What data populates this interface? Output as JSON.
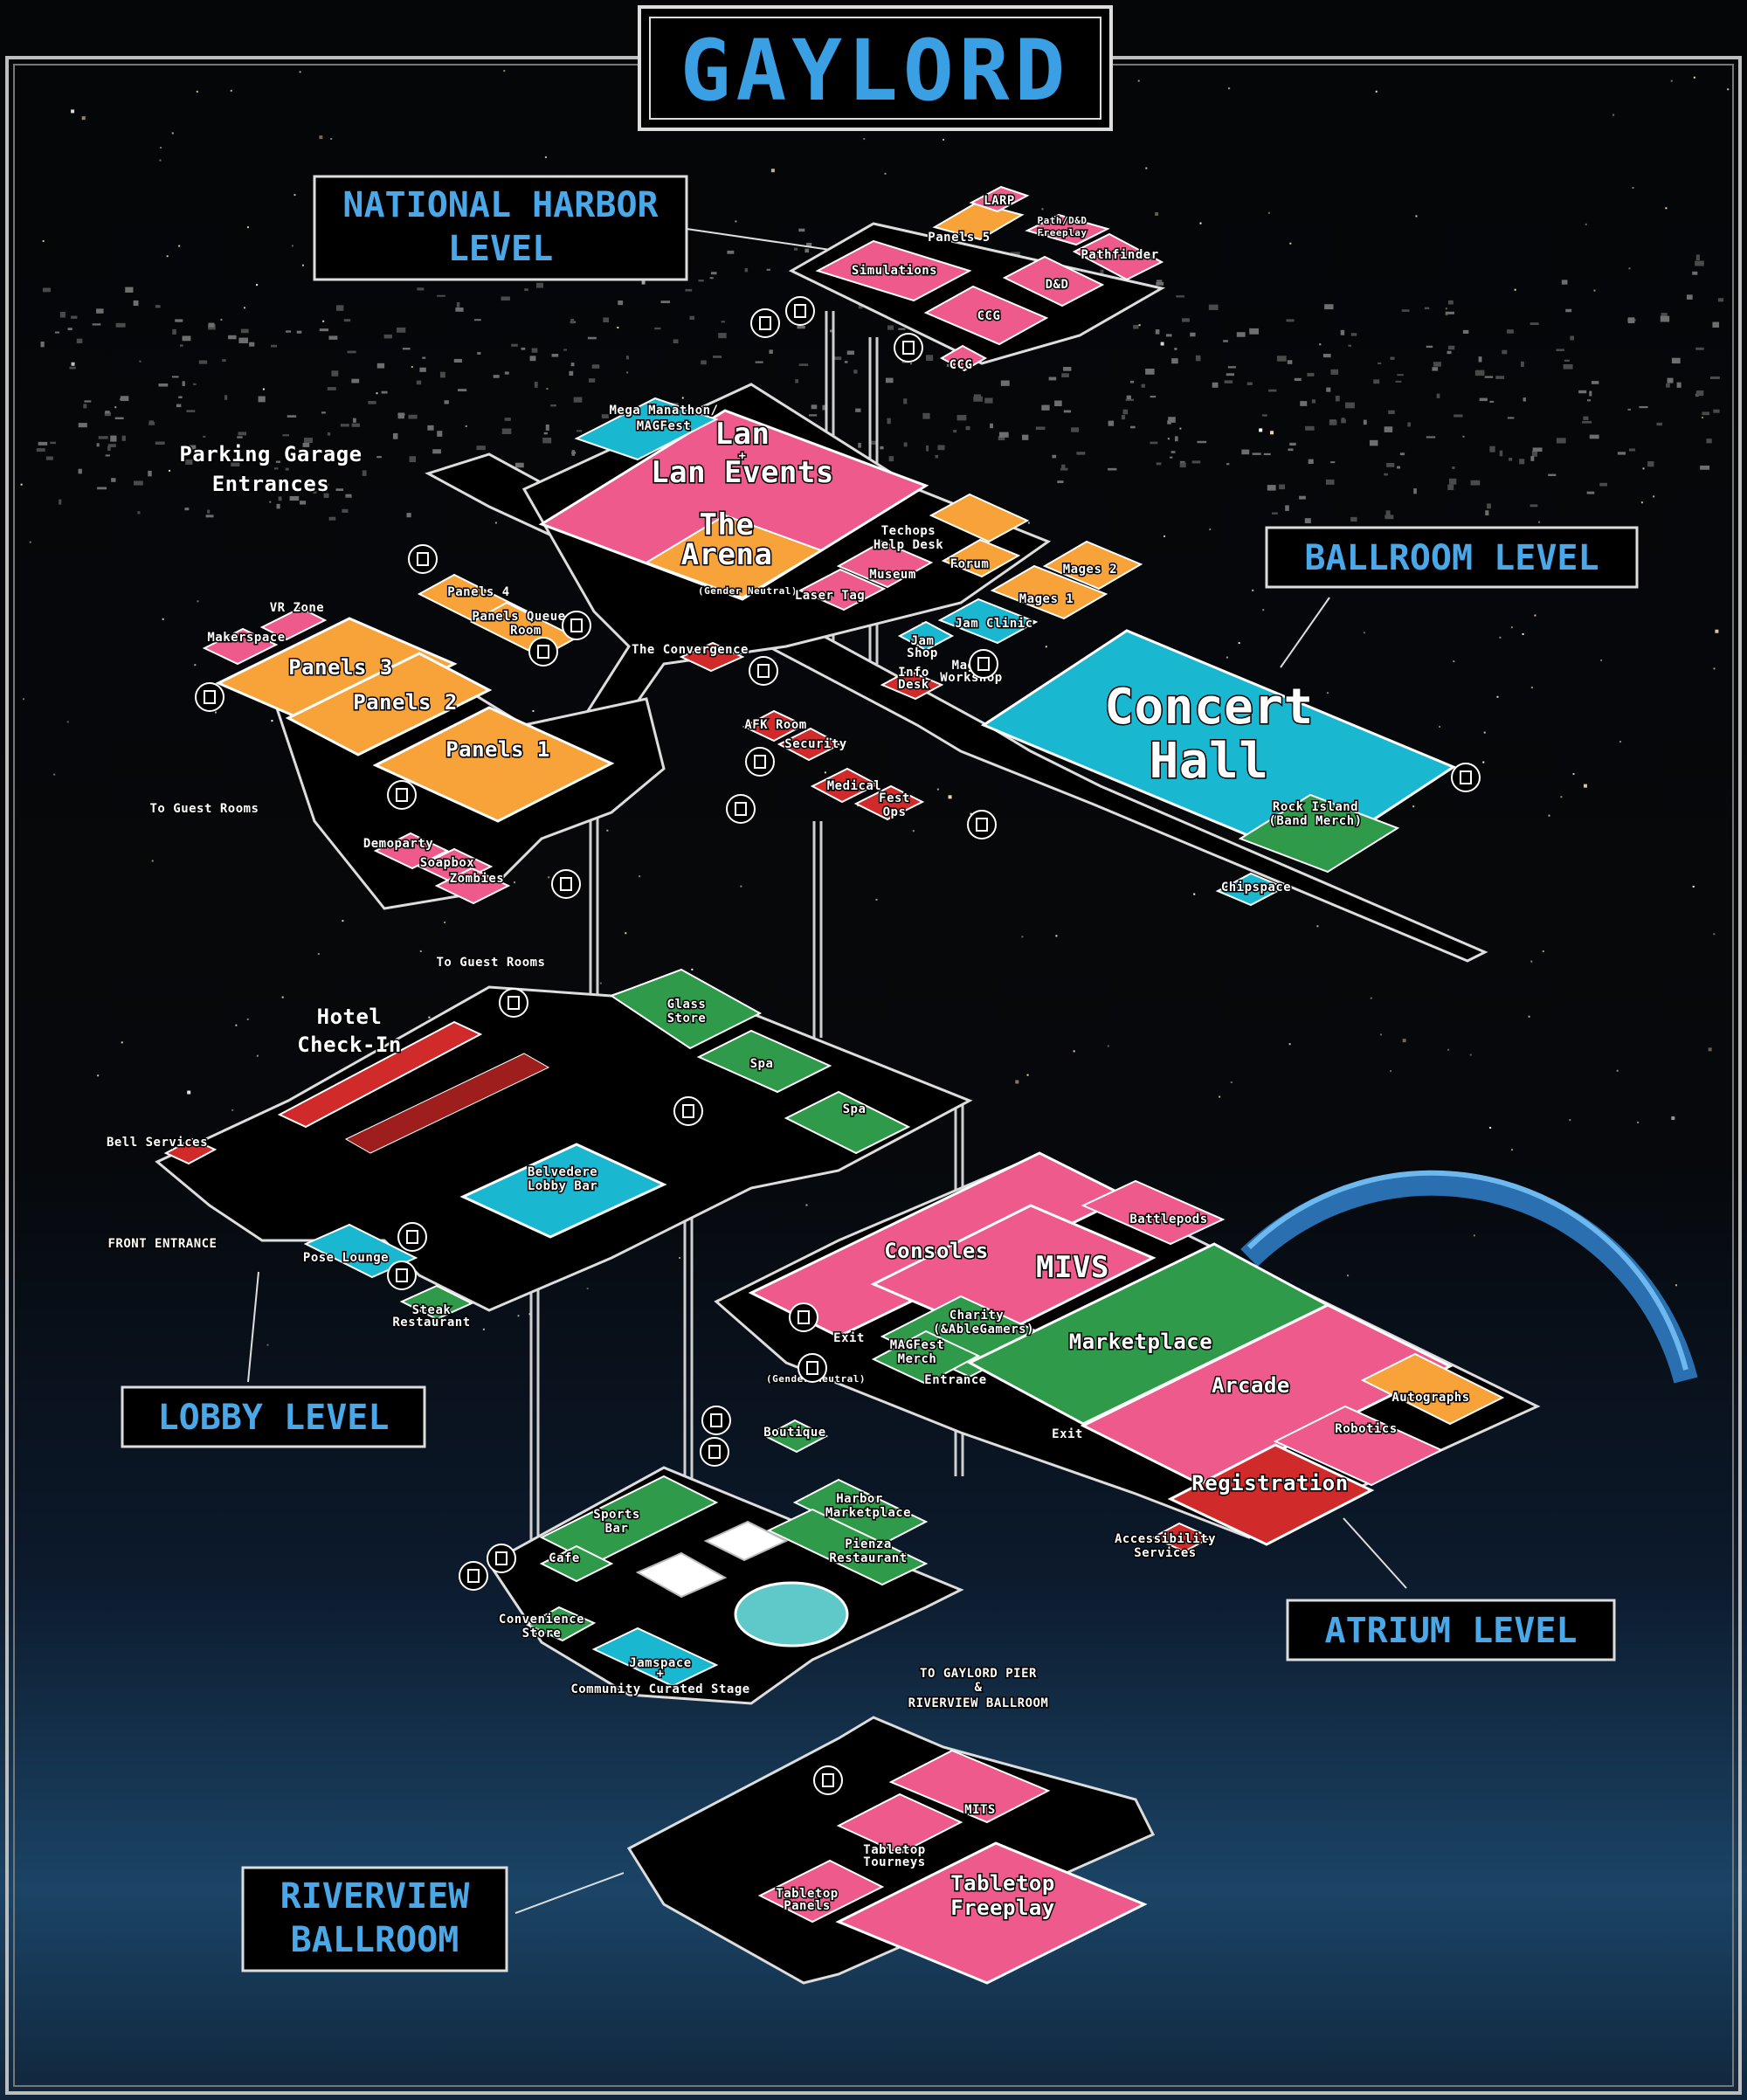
{
  "title": "GAYLORD",
  "levels": {
    "national_harbor": [
      "NATIONAL HARBOR",
      "LEVEL"
    ],
    "ballroom": "BALLROOM LEVEL",
    "lobby": "LOBBY LEVEL",
    "atrium": "ATRIUM LEVEL",
    "riverview": [
      "RIVERVIEW",
      "BALLROOM"
    ]
  },
  "colors": {
    "pink": "#ee5a8b",
    "orange": "#f7a33a",
    "cyan": "#19b7d0",
    "green": "#2e9a4a",
    "red": "#d12a2a",
    "gray": "#d9d3cc",
    "floor": "#000000",
    "frame": "#cccccc",
    "level_text": "#4aa8e8"
  },
  "rooms": {
    "national_harbor": {
      "larp": "LARP",
      "panels5": "Panels 5",
      "path_dnd": [
        "Path/D&D",
        "Freeplay"
      ],
      "pathfinder": "Pathfinder",
      "simulations": "Simulations",
      "dnd": "D&D",
      "ccg1": "CCG",
      "ccg2": "CCG"
    },
    "ballroom": {
      "mega": [
        "Mega Manathon/",
        "MAGFest"
      ],
      "lan": [
        "Lan",
        "+",
        "Lan Events"
      ],
      "arena": [
        "The",
        "Arena"
      ],
      "gender_neutral": "(Gender Neutral)",
      "techops": [
        "Techops",
        "Help Desk"
      ],
      "forum": "Forum",
      "museum": "Museum",
      "laser_tag": "Laser Tag",
      "mages2": "Mages 2",
      "mages1": "Mages 1",
      "jam_clinic": "Jam Clinic",
      "jam_shop": [
        "Jam",
        "Shop"
      ],
      "info_desk": [
        "Info",
        "Desk"
      ],
      "mages_workshop": [
        "Mages",
        "Workshop"
      ],
      "concert_hall": [
        "Concert",
        "Hall"
      ],
      "rock_island": [
        "Rock Island",
        "(Band Merch)"
      ],
      "chipspace": "Chipspace",
      "afk_room": "AFK Room",
      "security": "Security",
      "medical": "Medical",
      "fest_ops": [
        "Fest",
        "Ops"
      ],
      "convergence": "The Convergence",
      "panels4": "Panels 4",
      "panels_queue": [
        "Panels Queue",
        "Room"
      ],
      "vr_zone": "VR Zone",
      "makerspace": "Makerspace",
      "panels3": "Panels 3",
      "panels2": "Panels 2",
      "panels1": "Panels 1",
      "parking": [
        "Parking Garage",
        "Entrances"
      ],
      "to_guest_rooms_1": "To Guest Rooms",
      "to_guest_rooms_2": "To Guest Rooms",
      "demoparty": "Demoparty",
      "soapbox": "Soapbox",
      "zombies": "Zombies"
    },
    "lobby": {
      "hotel_checkin": [
        "Hotel",
        "Check-In"
      ],
      "glass_store": [
        "Glass",
        "Store"
      ],
      "spa1": "Spa",
      "spa2": "Spa",
      "bell_services": "Bell Services",
      "belvedere": [
        "Belvedere",
        "Lobby Bar"
      ],
      "front_entrance": "FRONT ENTRANCE",
      "pose_lounge": "Pose Lounge",
      "steak": [
        "Steak",
        "Restaurant"
      ]
    },
    "atrium": {
      "consoles": "Consoles",
      "mivs": "MIVS",
      "battlepods": "Battlepods",
      "charity": [
        "Charity",
        "(&AbleGamers)"
      ],
      "magfest_merch": [
        "MAGFest",
        "Merch"
      ],
      "marketplace": "Marketplace",
      "arcade": "Arcade",
      "autographs": "Autographs",
      "robotics": "Robotics",
      "registration": "Registration",
      "exit1": "Exit",
      "exit2": "Exit",
      "entrance": "Entrance",
      "gender_neutral": "(Gender Neutral)",
      "boutique": "Boutique",
      "accessibility": [
        "Accessibility",
        "Services"
      ],
      "sports_bar": [
        "Sports",
        "Bar"
      ],
      "harbor_marketplace": [
        "Harbor",
        "Marketplace"
      ],
      "pienza": [
        "Pienza",
        "Restaurant"
      ],
      "cafe": "Cafe",
      "convenience": [
        "Convenience",
        "Store"
      ],
      "jamspace": [
        "Jamspace",
        "+",
        "Community Curated Stage"
      ]
    },
    "riverview": {
      "pier": [
        "TO GAYLORD PIER",
        "&",
        "RIVERVIEW BALLROOM"
      ],
      "mits": "MITS",
      "tabletop_tourneys": [
        "Tabletop",
        "Tourneys"
      ],
      "tabletop_panels": [
        "Tabletop",
        "Panels"
      ],
      "tabletop_freeplay": [
        "Tabletop",
        "Freeplay"
      ]
    }
  }
}
